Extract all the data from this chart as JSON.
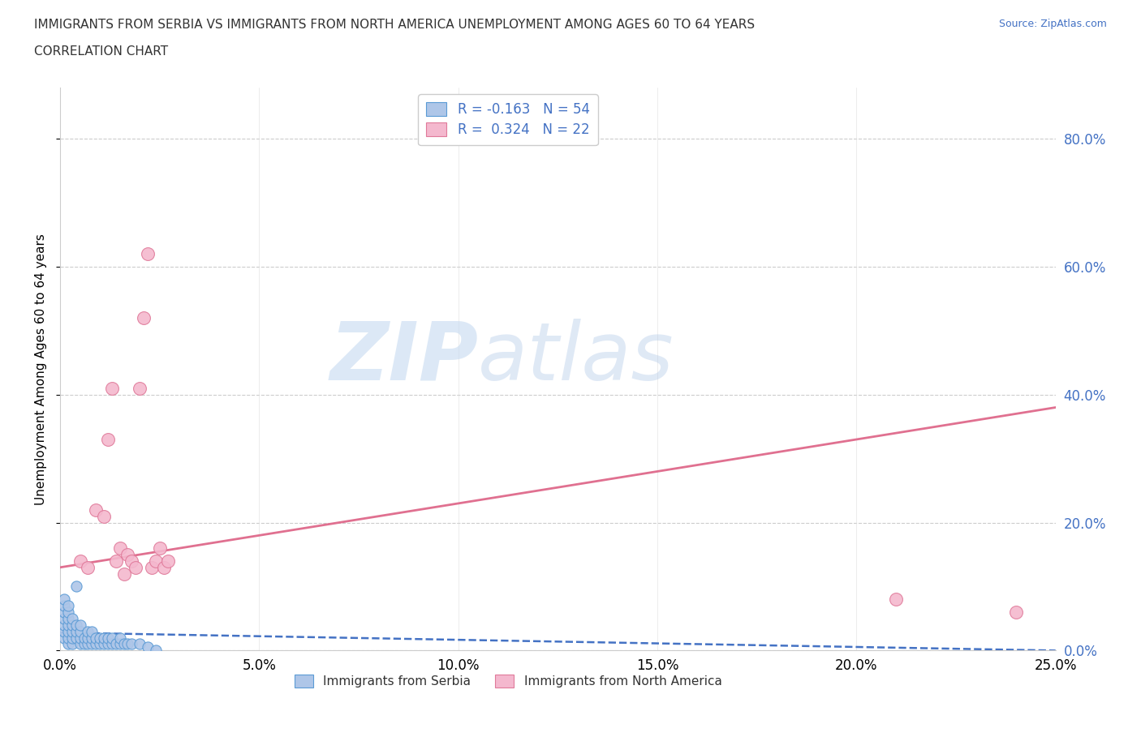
{
  "title_line1": "IMMIGRANTS FROM SERBIA VS IMMIGRANTS FROM NORTH AMERICA UNEMPLOYMENT AMONG AGES 60 TO 64 YEARS",
  "title_line2": "CORRELATION CHART",
  "source": "Source: ZipAtlas.com",
  "ylabel": "Unemployment Among Ages 60 to 64 years",
  "xlim": [
    0,
    0.25
  ],
  "ylim": [
    0,
    0.88
  ],
  "xticks": [
    0.0,
    0.05,
    0.1,
    0.15,
    0.2,
    0.25
  ],
  "yticks": [
    0.0,
    0.2,
    0.4,
    0.6,
    0.8
  ],
  "ytick_labels": [
    "0.0%",
    "20.0%",
    "40.0%",
    "60.0%",
    "80.0%"
  ],
  "xtick_labels": [
    "0.0%",
    "5.0%",
    "10.0%",
    "15.0%",
    "20.0%",
    "25.0%"
  ],
  "serbia_color": "#aec6e8",
  "serbia_edge_color": "#5b9bd5",
  "north_america_color": "#f4b8ce",
  "north_america_edge_color": "#e07a9a",
  "serbia_trend_color": "#4472c4",
  "north_america_trend_color": "#e07090",
  "serbia_R": -0.163,
  "serbia_N": 54,
  "north_america_R": 0.324,
  "north_america_N": 22,
  "watermark_zip": "ZIP",
  "watermark_atlas": "atlas",
  "legend_serbia": "Immigrants from Serbia",
  "legend_north_america": "Immigrants from North America",
  "serbia_x": [
    0.001,
    0.001,
    0.001,
    0.001,
    0.001,
    0.001,
    0.001,
    0.002,
    0.002,
    0.002,
    0.002,
    0.002,
    0.002,
    0.002,
    0.003,
    0.003,
    0.003,
    0.003,
    0.003,
    0.004,
    0.004,
    0.004,
    0.004,
    0.005,
    0.005,
    0.005,
    0.005,
    0.006,
    0.006,
    0.007,
    0.007,
    0.007,
    0.008,
    0.008,
    0.008,
    0.009,
    0.009,
    0.01,
    0.01,
    0.011,
    0.011,
    0.012,
    0.012,
    0.013,
    0.013,
    0.014,
    0.015,
    0.015,
    0.016,
    0.017,
    0.018,
    0.02,
    0.022,
    0.024
  ],
  "serbia_y": [
    0.02,
    0.03,
    0.04,
    0.05,
    0.06,
    0.07,
    0.08,
    0.01,
    0.02,
    0.03,
    0.04,
    0.05,
    0.06,
    0.07,
    0.01,
    0.02,
    0.03,
    0.04,
    0.05,
    0.02,
    0.03,
    0.04,
    0.1,
    0.01,
    0.02,
    0.03,
    0.04,
    0.01,
    0.02,
    0.01,
    0.02,
    0.03,
    0.01,
    0.02,
    0.03,
    0.01,
    0.02,
    0.01,
    0.02,
    0.01,
    0.02,
    0.01,
    0.02,
    0.01,
    0.02,
    0.01,
    0.01,
    0.02,
    0.01,
    0.01,
    0.01,
    0.01,
    0.005,
    0.0
  ],
  "north_america_x": [
    0.005,
    0.007,
    0.009,
    0.011,
    0.012,
    0.013,
    0.014,
    0.015,
    0.016,
    0.017,
    0.018,
    0.019,
    0.02,
    0.021,
    0.022,
    0.023,
    0.024,
    0.025,
    0.026,
    0.027,
    0.21,
    0.24
  ],
  "north_america_y": [
    0.14,
    0.13,
    0.22,
    0.21,
    0.33,
    0.41,
    0.14,
    0.16,
    0.12,
    0.15,
    0.14,
    0.13,
    0.41,
    0.52,
    0.62,
    0.13,
    0.14,
    0.16,
    0.13,
    0.14,
    0.08,
    0.06
  ],
  "na_trend_x0": 0.0,
  "na_trend_y0": 0.13,
  "na_trend_x1": 0.25,
  "na_trend_y1": 0.38,
  "s_trend_x0": 0.0,
  "s_trend_y0": 0.028,
  "s_trend_x1": 0.25,
  "s_trend_y1": 0.0
}
